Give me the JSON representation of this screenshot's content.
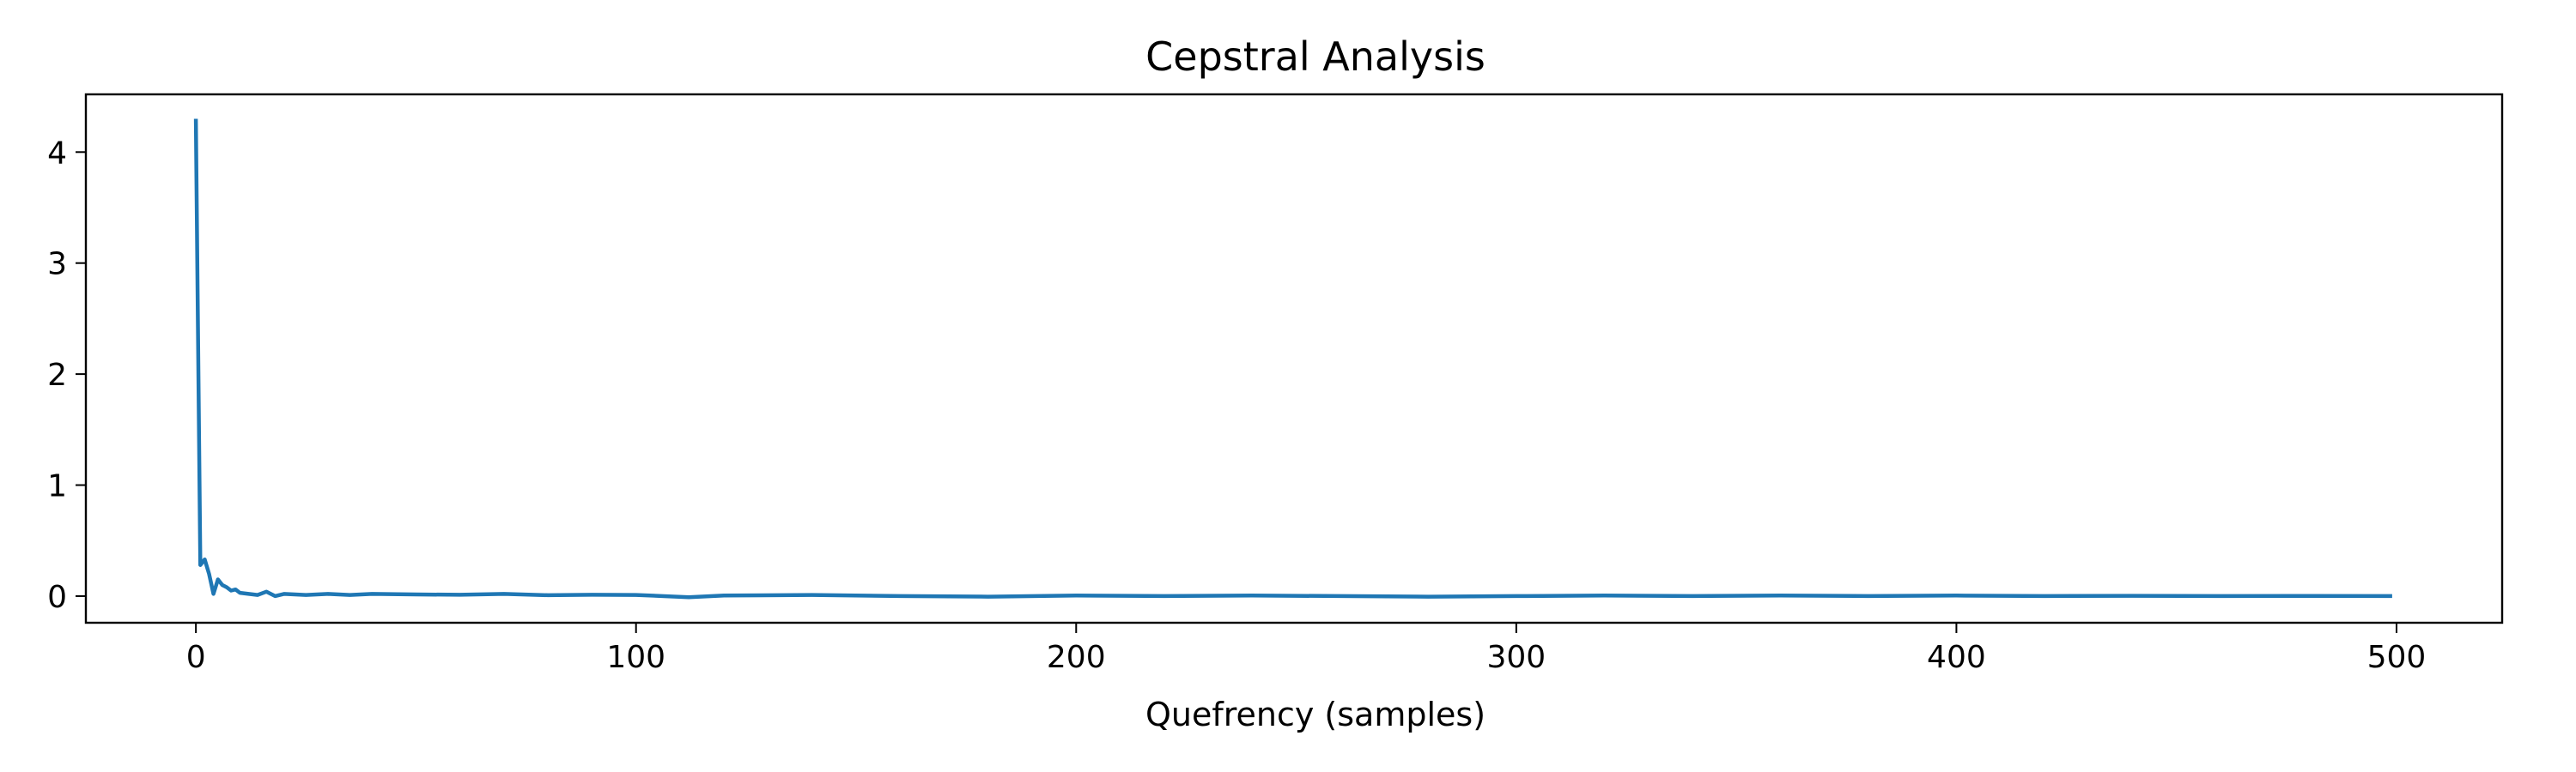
{
  "chart_data": {
    "type": "line",
    "title": "Cepstral Analysis",
    "xlabel": "Quefrency (samples)",
    "ylabel": "",
    "xlim": [
      -25,
      524
    ],
    "ylim": [
      -0.24,
      4.52
    ],
    "xticks": [
      0,
      100,
      200,
      300,
      400,
      500
    ],
    "yticks": [
      0,
      1,
      2,
      3,
      4
    ],
    "grid": false,
    "series": [
      {
        "color": "#1f77b4",
        "x": [
          0,
          1,
          2,
          3,
          4,
          5,
          6,
          7,
          8,
          9,
          10,
          12,
          14,
          16,
          18,
          20,
          25,
          30,
          35,
          40,
          50,
          60,
          70,
          80,
          90,
          100,
          112,
          120,
          140,
          160,
          180,
          200,
          220,
          240,
          260,
          280,
          300,
          320,
          340,
          360,
          380,
          400,
          420,
          440,
          460,
          480,
          499
        ],
        "y": [
          4.3,
          0.28,
          0.33,
          0.2,
          0.02,
          0.15,
          0.1,
          0.08,
          0.05,
          0.06,
          0.03,
          0.02,
          0.01,
          0.04,
          0.0,
          0.02,
          0.01,
          0.02,
          0.01,
          0.02,
          0.015,
          0.012,
          0.02,
          0.008,
          0.012,
          0.01,
          -0.01,
          0.005,
          0.01,
          0.0,
          -0.005,
          0.005,
          0.0,
          0.005,
          0.0,
          -0.005,
          0.0,
          0.005,
          0.0,
          0.005,
          0.0,
          0.005,
          0.0,
          0.003,
          0.0,
          0.002,
          0.0
        ]
      }
    ]
  }
}
